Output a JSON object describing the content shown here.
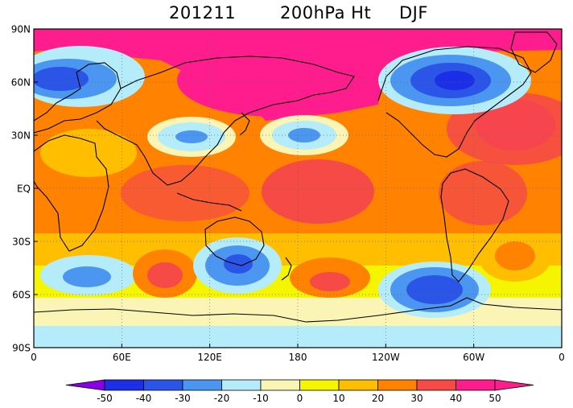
{
  "title": {
    "date": "201211",
    "variable": "200hPa Ht",
    "season": "DJF"
  },
  "map": {
    "lat_labels": [
      "90N",
      "60N",
      "30N",
      "EQ",
      "30S",
      "60S",
      "90S"
    ],
    "lon_labels": [
      "0",
      "60E",
      "120E",
      "180",
      "120W",
      "60W",
      "0"
    ],
    "projection": "cylindrical equidistant",
    "grid": "dotted"
  },
  "colorbar": {
    "ticks": [
      "-50",
      "-40",
      "-30",
      "-20",
      "-10",
      "0",
      "10",
      "20",
      "30",
      "40",
      "50"
    ],
    "colors": [
      "#8a00e6",
      "#1a2fe6",
      "#2a55e6",
      "#4b96f0",
      "#b4ecfa",
      "#faf5b4",
      "#f5f500",
      "#ffbe00",
      "#ff8200",
      "#f54a46",
      "#ff1c8c"
    ]
  },
  "chart_data": {
    "type": "heatmap",
    "variable": "200hPa Ht",
    "date": "201211",
    "season": "DJF",
    "x_range_deg": [
      0,
      360
    ],
    "y_range_deg": [
      -90,
      90
    ],
    "anomaly_features": [
      {
        "lon": 150,
        "lat": 82,
        "value": 50
      },
      {
        "lon": 35,
        "lat": 58,
        "value": -30
      },
      {
        "lon": 95,
        "lat": 35,
        "value": -10
      },
      {
        "lon": 180,
        "lat": 30,
        "value": -10
      },
      {
        "lon": 265,
        "lat": 58,
        "value": -40
      },
      {
        "lon": 325,
        "lat": 40,
        "value": 50
      },
      {
        "lon": 20,
        "lat": -42,
        "value": -20
      },
      {
        "lon": 90,
        "lat": -42,
        "value": 40
      },
      {
        "lon": 140,
        "lat": -40,
        "value": -30
      },
      {
        "lon": 195,
        "lat": -50,
        "value": 40
      },
      {
        "lon": 275,
        "lat": -55,
        "value": -30
      },
      {
        "lon": 200,
        "lat": 5,
        "value": 40
      }
    ]
  }
}
